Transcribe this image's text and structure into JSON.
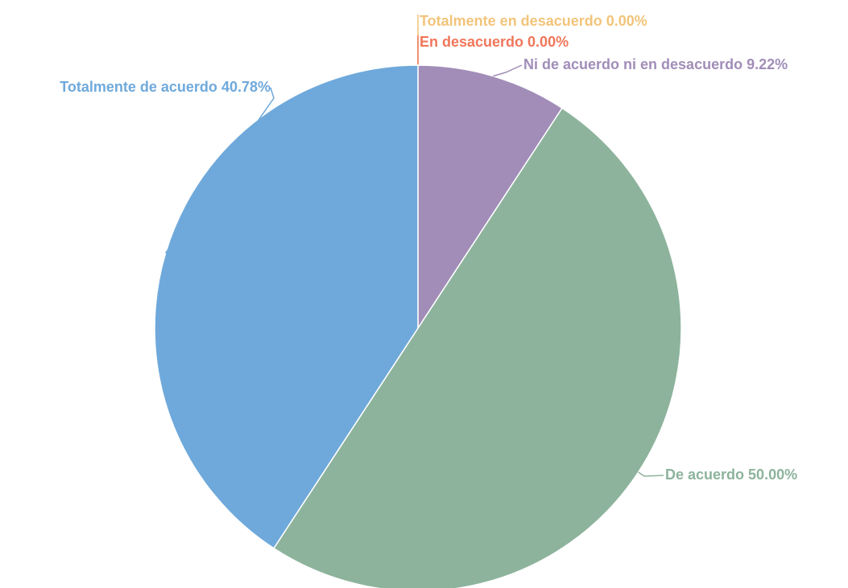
{
  "chart_data": {
    "type": "pie",
    "categories": [
      "Totalmente en desacuerdo",
      "En desacuerdo",
      "Ni de acuerdo ni en desacuerdo",
      "De acuerdo",
      "Totalmente de acuerdo"
    ],
    "values": [
      0,
      0,
      9.22,
      50,
      40.78
    ],
    "value_labels": [
      "0.00%",
      "0.00%",
      "9.22%",
      "50.00%",
      "40.78%"
    ],
    "colors": [
      "#f2c47a",
      "#f0765a",
      "#a18db8",
      "#8db39c",
      "#6fa9db"
    ]
  }
}
